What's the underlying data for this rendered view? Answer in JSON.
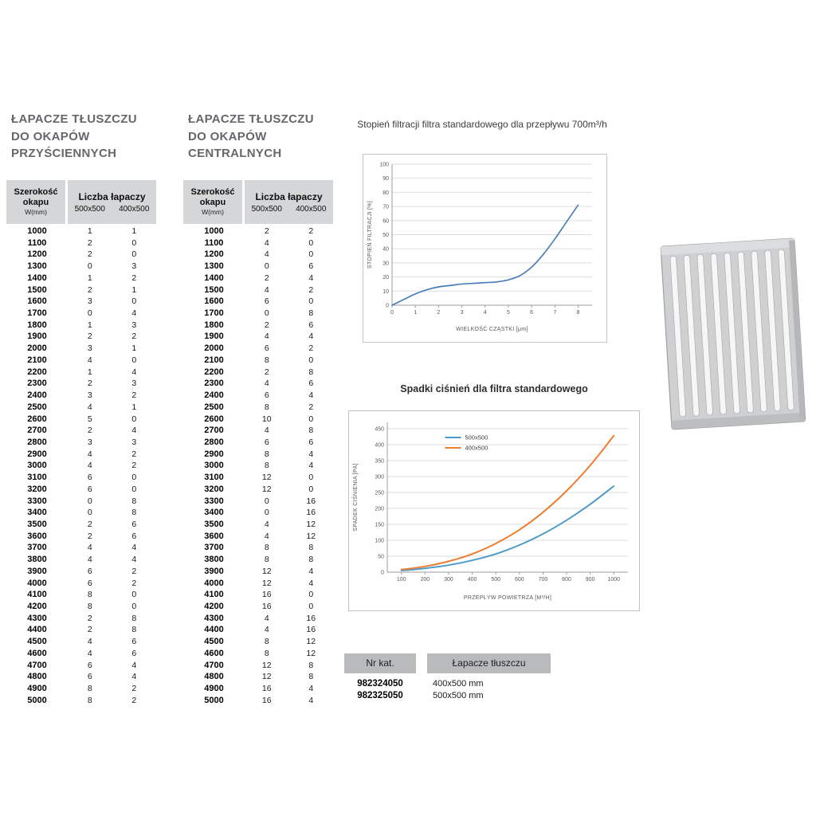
{
  "tables": {
    "header": {
      "col_width_l1": "Szerokość",
      "col_width_l2": "okapu",
      "col_width_l3": "W(mm)",
      "col_count": "Liczba łapaczy",
      "sub_a": "500x500",
      "sub_b": "400x500"
    },
    "wall": {
      "title_l1": "ŁAPACZE TŁUSZCZU",
      "title_l2": "DO OKAPÓW",
      "title_l3": "PRZYŚCIENNYCH",
      "rows": [
        [
          "1000",
          "1",
          "1"
        ],
        [
          "1100",
          "2",
          "0"
        ],
        [
          "1200",
          "2",
          "0"
        ],
        [
          "1300",
          "0",
          "3"
        ],
        [
          "1400",
          "1",
          "2"
        ],
        [
          "1500",
          "2",
          "1"
        ],
        [
          "1600",
          "3",
          "0"
        ],
        [
          "1700",
          "0",
          "4"
        ],
        [
          "1800",
          "1",
          "3"
        ],
        [
          "1900",
          "2",
          "2"
        ],
        [
          "2000",
          "3",
          "1"
        ],
        [
          "2100",
          "4",
          "0"
        ],
        [
          "2200",
          "1",
          "4"
        ],
        [
          "2300",
          "2",
          "3"
        ],
        [
          "2400",
          "3",
          "2"
        ],
        [
          "2500",
          "4",
          "1"
        ],
        [
          "2600",
          "5",
          "0"
        ],
        [
          "2700",
          "2",
          "4"
        ],
        [
          "2800",
          "3",
          "3"
        ],
        [
          "2900",
          "4",
          "2"
        ],
        [
          "3000",
          "4",
          "2"
        ],
        [
          "3100",
          "6",
          "0"
        ],
        [
          "3200",
          "6",
          "0"
        ],
        [
          "3300",
          "0",
          "8"
        ],
        [
          "3400",
          "0",
          "8"
        ],
        [
          "3500",
          "2",
          "6"
        ],
        [
          "3600",
          "2",
          "6"
        ],
        [
          "3700",
          "4",
          "4"
        ],
        [
          "3800",
          "4",
          "4"
        ],
        [
          "3900",
          "6",
          "2"
        ],
        [
          "4000",
          "6",
          "2"
        ],
        [
          "4100",
          "8",
          "0"
        ],
        [
          "4200",
          "8",
          "0"
        ],
        [
          "4300",
          "2",
          "8"
        ],
        [
          "4400",
          "2",
          "8"
        ],
        [
          "4500",
          "4",
          "6"
        ],
        [
          "4600",
          "4",
          "6"
        ],
        [
          "4700",
          "6",
          "4"
        ],
        [
          "4800",
          "6",
          "4"
        ],
        [
          "4900",
          "8",
          "2"
        ],
        [
          "5000",
          "8",
          "2"
        ]
      ]
    },
    "central": {
      "title_l1": "ŁAPACZE TŁUSZCZU",
      "title_l2": "DO OKAPÓW",
      "title_l3": "CENTRALNYCH",
      "rows": [
        [
          "1000",
          "2",
          "2"
        ],
        [
          "1100",
          "4",
          "0"
        ],
        [
          "1200",
          "4",
          "0"
        ],
        [
          "1300",
          "0",
          "6"
        ],
        [
          "1400",
          "2",
          "4"
        ],
        [
          "1500",
          "4",
          "2"
        ],
        [
          "1600",
          "6",
          "0"
        ],
        [
          "1700",
          "0",
          "8"
        ],
        [
          "1800",
          "2",
          "6"
        ],
        [
          "1900",
          "4",
          "4"
        ],
        [
          "2000",
          "6",
          "2"
        ],
        [
          "2100",
          "8",
          "0"
        ],
        [
          "2200",
          "2",
          "8"
        ],
        [
          "2300",
          "4",
          "6"
        ],
        [
          "2400",
          "6",
          "4"
        ],
        [
          "2500",
          "8",
          "2"
        ],
        [
          "2600",
          "10",
          "0"
        ],
        [
          "2700",
          "4",
          "8"
        ],
        [
          "2800",
          "6",
          "6"
        ],
        [
          "2900",
          "8",
          "4"
        ],
        [
          "3000",
          "8",
          "4"
        ],
        [
          "3100",
          "12",
          "0"
        ],
        [
          "3200",
          "12",
          "0"
        ],
        [
          "3300",
          "0",
          "16"
        ],
        [
          "3400",
          "0",
          "16"
        ],
        [
          "3500",
          "4",
          "12"
        ],
        [
          "3600",
          "4",
          "12"
        ],
        [
          "3700",
          "8",
          "8"
        ],
        [
          "3800",
          "8",
          "8"
        ],
        [
          "3900",
          "12",
          "4"
        ],
        [
          "4000",
          "12",
          "4"
        ],
        [
          "4100",
          "16",
          "0"
        ],
        [
          "4200",
          "16",
          "0"
        ],
        [
          "4300",
          "4",
          "16"
        ],
        [
          "4400",
          "4",
          "16"
        ],
        [
          "4500",
          "8",
          "12"
        ],
        [
          "4600",
          "8",
          "12"
        ],
        [
          "4700",
          "12",
          "8"
        ],
        [
          "4800",
          "12",
          "8"
        ],
        [
          "4900",
          "16",
          "4"
        ],
        [
          "5000",
          "16",
          "4"
        ]
      ]
    }
  },
  "chart_data": [
    {
      "type": "line",
      "title": "Stopień filtracji filtra standardowego dla przepływu 700m³/h",
      "xlabel": "WIELKOŚĆ CZĄSTKI [μm]",
      "ylabel": "STOPIEŃ FILTRACJI [%]",
      "xlim": [
        0,
        8.6
      ],
      "ylim": [
        0,
        100
      ],
      "x_ticks": [
        0,
        1,
        2,
        3,
        4,
        5,
        6,
        7,
        8
      ],
      "y_ticks": [
        0,
        10,
        20,
        30,
        40,
        50,
        60,
        70,
        80,
        90,
        100
      ],
      "grid": "horizontal",
      "legend_position": "none",
      "series": [
        {
          "name": "",
          "color": "#4a7ebb",
          "x": [
            0,
            0.5,
            1,
            1.5,
            2,
            2.5,
            3,
            3.5,
            4,
            4.5,
            5,
            5.5,
            6,
            6.5,
            7,
            7.5,
            8
          ],
          "y": [
            0,
            4,
            8,
            11,
            13,
            14,
            15,
            15.5,
            16,
            16.5,
            18,
            21,
            27,
            36,
            47,
            59,
            71
          ]
        }
      ]
    },
    {
      "type": "line",
      "title": "Spadki ciśnień dla filtra standardowego",
      "xlabel": "PRZEPŁYW POWIETRZA [M³/H]",
      "ylabel": "SPADEK CIŚNIENIA [PA]",
      "xlim": [
        40,
        1060
      ],
      "ylim": [
        0,
        470
      ],
      "x_ticks": [
        100,
        200,
        300,
        400,
        500,
        600,
        700,
        800,
        900,
        1000
      ],
      "y_ticks": [
        0,
        50,
        100,
        150,
        200,
        250,
        300,
        350,
        400,
        450
      ],
      "grid": "horizontal",
      "legend_position": "top-center",
      "legend": [
        "500x500",
        "400x500"
      ],
      "series": [
        {
          "name": "500x500",
          "color": "#4f9bc8",
          "x": [
            100,
            200,
            300,
            400,
            500,
            600,
            700,
            800,
            900,
            1000
          ],
          "y": [
            5,
            12,
            22,
            37,
            57,
            85,
            120,
            163,
            213,
            270
          ]
        },
        {
          "name": "400x500",
          "color": "#ed7d31",
          "x": [
            100,
            200,
            300,
            400,
            500,
            600,
            700,
            800,
            900,
            1000
          ],
          "y": [
            8,
            18,
            34,
            57,
            90,
            133,
            188,
            255,
            335,
            428
          ]
        }
      ]
    }
  ],
  "catalog": {
    "headers": [
      "Nr kat.",
      "Łapacze tłuszczu"
    ],
    "rows": [
      [
        "982324050",
        "400x500 mm"
      ],
      [
        "982325050",
        "500x500 mm"
      ]
    ]
  },
  "illustration": {
    "name": "grease-filter-baffle-image"
  }
}
